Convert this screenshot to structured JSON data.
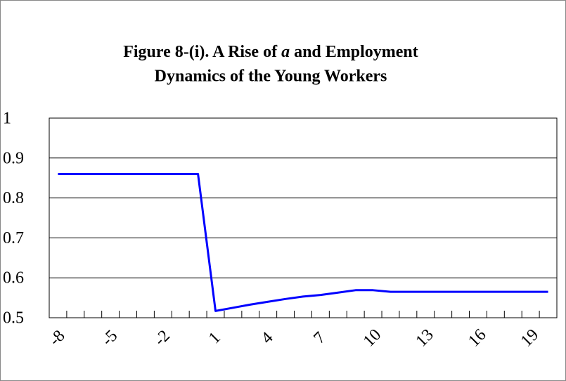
{
  "chart_data": {
    "type": "line",
    "title": [
      "Figure 8-(i). A Rise of ",
      "a",
      " and Employment",
      "Dynamics of the Young Workers"
    ],
    "categories": [
      "-8",
      null,
      null,
      "-5",
      null,
      null,
      "-2",
      null,
      null,
      "1",
      null,
      null,
      "4",
      null,
      null,
      "7",
      null,
      null,
      "10",
      null,
      null,
      "13",
      null,
      null,
      "16",
      null,
      null,
      "19",
      null
    ],
    "values": [
      0.86,
      0.86,
      0.86,
      0.86,
      0.86,
      0.86,
      0.86,
      0.86,
      0.86,
      0.517,
      0.525,
      0.533,
      0.54,
      0.547,
      0.553,
      0.557,
      0.563,
      0.569,
      0.569,
      0.565,
      0.565,
      0.565,
      0.565,
      0.565,
      0.565,
      0.565,
      0.565,
      0.565,
      0.565
    ],
    "color": "#0000ff",
    "ylim": [
      0.5,
      1
    ],
    "yticks": [
      0.5,
      0.6,
      0.7,
      0.8,
      0.9,
      1
    ],
    "grid": true
  }
}
